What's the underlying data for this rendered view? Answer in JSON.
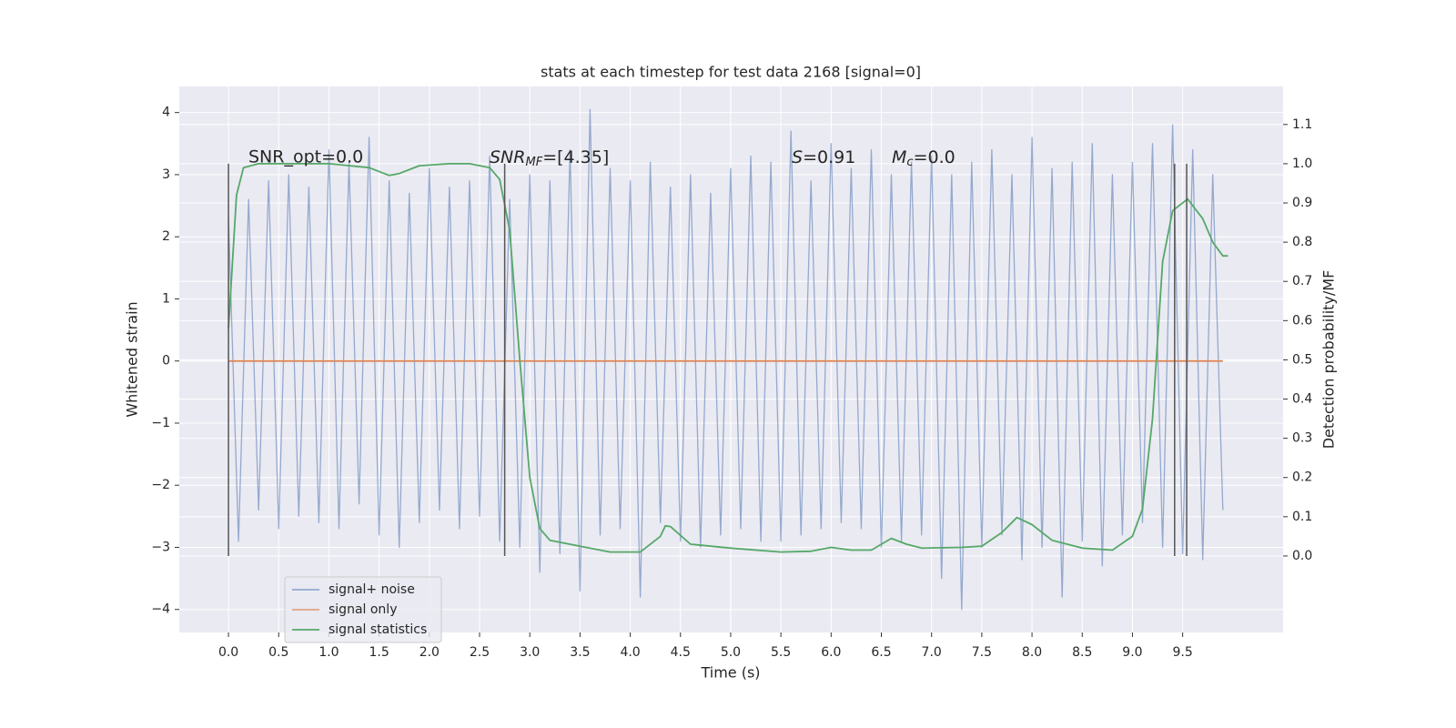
{
  "chart_data": {
    "type": "line",
    "title": "stats at each timestep for test data 2168 [signal=0]",
    "xlabel": "Time (s)",
    "ylabel": "Whitened strain",
    "y2label": "Detection probability/MF",
    "xlim": [
      -0.49,
      10.5
    ],
    "ylim": [
      -4.37,
      4.42
    ],
    "y2lim": [
      -0.195,
      1.197
    ],
    "xticks": [
      {
        "value": 0,
        "label": "0.0"
      },
      {
        "value": 0.5,
        "label": "0.5"
      },
      {
        "value": 1,
        "label": "1.0"
      },
      {
        "value": 1.5,
        "label": "1.5"
      },
      {
        "value": 2,
        "label": "2.0"
      },
      {
        "value": 2.5,
        "label": "2.5"
      },
      {
        "value": 3,
        "label": "3.0"
      },
      {
        "value": 3.5,
        "label": "3.5"
      },
      {
        "value": 4,
        "label": "4.0"
      },
      {
        "value": 4.5,
        "label": "4.5"
      },
      {
        "value": 5,
        "label": "5.0"
      },
      {
        "value": 5.5,
        "label": "5.5"
      },
      {
        "value": 6,
        "label": "6.0"
      },
      {
        "value": 6.5,
        "label": "6.5"
      },
      {
        "value": 7,
        "label": "7.0"
      },
      {
        "value": 7.5,
        "label": "7.5"
      },
      {
        "value": 8,
        "label": "8.0"
      },
      {
        "value": 8.5,
        "label": "8.5"
      },
      {
        "value": 9,
        "label": "9.0"
      },
      {
        "value": 9.5,
        "label": "9.5"
      }
    ],
    "yticks": [
      {
        "value": -4,
        "label": "−4"
      },
      {
        "value": -3,
        "label": "−3"
      },
      {
        "value": -2,
        "label": "−2"
      },
      {
        "value": -1,
        "label": "−1"
      },
      0,
      1,
      2,
      3,
      4
    ],
    "y2ticks": [
      {
        "value": 0,
        "label": "0.0"
      },
      {
        "value": 0.1,
        "label": "0.1"
      },
      {
        "value": 0.2,
        "label": "0.2"
      },
      {
        "value": 0.3,
        "label": "0.3"
      },
      {
        "value": 0.4,
        "label": "0.4"
      },
      {
        "value": 0.5,
        "label": "0.5"
      },
      {
        "value": 0.6,
        "label": "0.6"
      },
      {
        "value": 0.7,
        "label": "0.7"
      },
      {
        "value": 0.8,
        "label": "0.8"
      },
      {
        "value": 0.9,
        "label": "0.9"
      },
      {
        "value": 1,
        "label": "1.0"
      },
      {
        "value": 1.1,
        "label": "1.1"
      }
    ],
    "grid": true,
    "legend": "lower left",
    "series": [
      {
        "name": "signal+ noise",
        "color": "#4c72b0",
        "x": [
          0.0,
          0.1,
          0.2,
          0.3,
          0.4,
          0.5,
          0.6,
          0.7,
          0.8,
          0.9,
          1.0,
          1.1,
          1.2,
          1.3,
          1.4,
          1.5,
          1.6,
          1.7,
          1.8,
          1.9,
          2.0,
          2.1,
          2.2,
          2.3,
          2.4,
          2.5,
          2.6,
          2.7,
          2.8,
          2.9,
          3.0,
          3.1,
          3.2,
          3.3,
          3.4,
          3.5,
          3.6,
          3.7,
          3.8,
          3.9,
          4.0,
          4.1,
          4.2,
          4.3,
          4.4,
          4.5,
          4.6,
          4.7,
          4.8,
          4.9,
          5.0,
          5.1,
          5.2,
          5.3,
          5.4,
          5.5,
          5.6,
          5.7,
          5.8,
          5.9,
          6.0,
          6.1,
          6.2,
          6.3,
          6.4,
          6.5,
          6.6,
          6.7,
          6.8,
          6.9,
          7.0,
          7.1,
          7.2,
          7.3,
          7.4,
          7.5,
          7.6,
          7.7,
          7.8,
          7.9,
          8.0,
          8.1,
          8.2,
          8.3,
          8.4,
          8.5,
          8.6,
          8.7,
          8.8,
          8.9,
          9.0,
          9.1,
          9.2,
          9.3,
          9.4,
          9.5,
          9.6,
          9.7,
          9.8,
          9.9
        ],
        "values": [
          2.3,
          -2.9,
          2.6,
          -2.4,
          2.9,
          -2.7,
          3.0,
          -2.5,
          2.8,
          -2.6,
          3.4,
          -2.7,
          3.2,
          -2.3,
          3.6,
          -2.8,
          2.9,
          -3.0,
          2.7,
          -2.6,
          3.1,
          -2.4,
          2.8,
          -2.7,
          2.9,
          -2.5,
          3.3,
          -2.9,
          2.6,
          -3.0,
          3.0,
          -3.4,
          2.9,
          -3.1,
          3.4,
          -3.7,
          4.05,
          -2.8,
          3.1,
          -2.7,
          2.9,
          -3.8,
          3.2,
          -2.6,
          2.8,
          -2.9,
          3.0,
          -3.0,
          2.7,
          -2.8,
          3.1,
          -2.7,
          3.3,
          -2.9,
          3.2,
          -2.9,
          3.7,
          -2.8,
          2.9,
          -2.7,
          3.5,
          -2.6,
          3.1,
          -2.7,
          3.4,
          -3.0,
          3.0,
          -2.9,
          3.2,
          -2.8,
          3.3,
          -3.5,
          3.0,
          -4.0,
          3.2,
          -3.0,
          3.4,
          -2.8,
          3.0,
          -3.2,
          3.6,
          -3.0,
          3.1,
          -3.8,
          3.2,
          -2.9,
          3.5,
          -3.3,
          3.0,
          -2.8,
          3.2,
          -2.6,
          3.5,
          -3.0,
          3.8,
          -3.1,
          3.4,
          -3.2,
          3.0,
          -2.4
        ]
      },
      {
        "name": "signal only",
        "color": "#dd8452",
        "x": [
          0.0,
          9.9
        ],
        "values": [
          0,
          0
        ]
      },
      {
        "name": "signal statistics",
        "color": "#55a868",
        "axis": "y2",
        "x": [
          0.0,
          0.08,
          0.15,
          0.3,
          0.6,
          1.0,
          1.4,
          1.6,
          1.7,
          1.9,
          2.2,
          2.4,
          2.6,
          2.7,
          2.8,
          2.9,
          3.0,
          3.1,
          3.2,
          3.5,
          3.8,
          4.1,
          4.3,
          4.35,
          4.4,
          4.6,
          5.0,
          5.5,
          5.8,
          6.0,
          6.2,
          6.4,
          6.6,
          6.75,
          6.9,
          7.3,
          7.5,
          7.7,
          7.85,
          8.0,
          8.2,
          8.5,
          8.8,
          9.0,
          9.1,
          9.2,
          9.3,
          9.4,
          9.55,
          9.7,
          9.8,
          9.9,
          9.95
        ],
        "values": [
          0.58,
          0.92,
          0.99,
          1.0,
          1.0,
          1.0,
          0.99,
          0.97,
          0.975,
          0.995,
          1.0,
          1.0,
          0.99,
          0.96,
          0.83,
          0.5,
          0.2,
          0.07,
          0.04,
          0.025,
          0.01,
          0.01,
          0.05,
          0.077,
          0.075,
          0.03,
          0.02,
          0.01,
          0.012,
          0.022,
          0.015,
          0.015,
          0.045,
          0.03,
          0.02,
          0.022,
          0.025,
          0.06,
          0.098,
          0.08,
          0.04,
          0.02,
          0.015,
          0.05,
          0.12,
          0.35,
          0.75,
          0.88,
          0.91,
          0.86,
          0.8,
          0.765,
          0.765
        ]
      }
    ],
    "vlines": {
      "x": [
        0,
        2.75,
        9.42,
        9.54
      ],
      "ymin": 0,
      "ymax": 1,
      "axis": "y2",
      "color": "#555555"
    },
    "annotations": [
      {
        "text": "SNR_opt=0.0"
      },
      {
        "math": "SNR",
        "sub": "MF",
        "rest": "=[4.35]"
      },
      {
        "math": "S",
        "rest": "=0.91"
      },
      {
        "math": "M",
        "sub": "c",
        "rest": "=0.0"
      }
    ]
  }
}
